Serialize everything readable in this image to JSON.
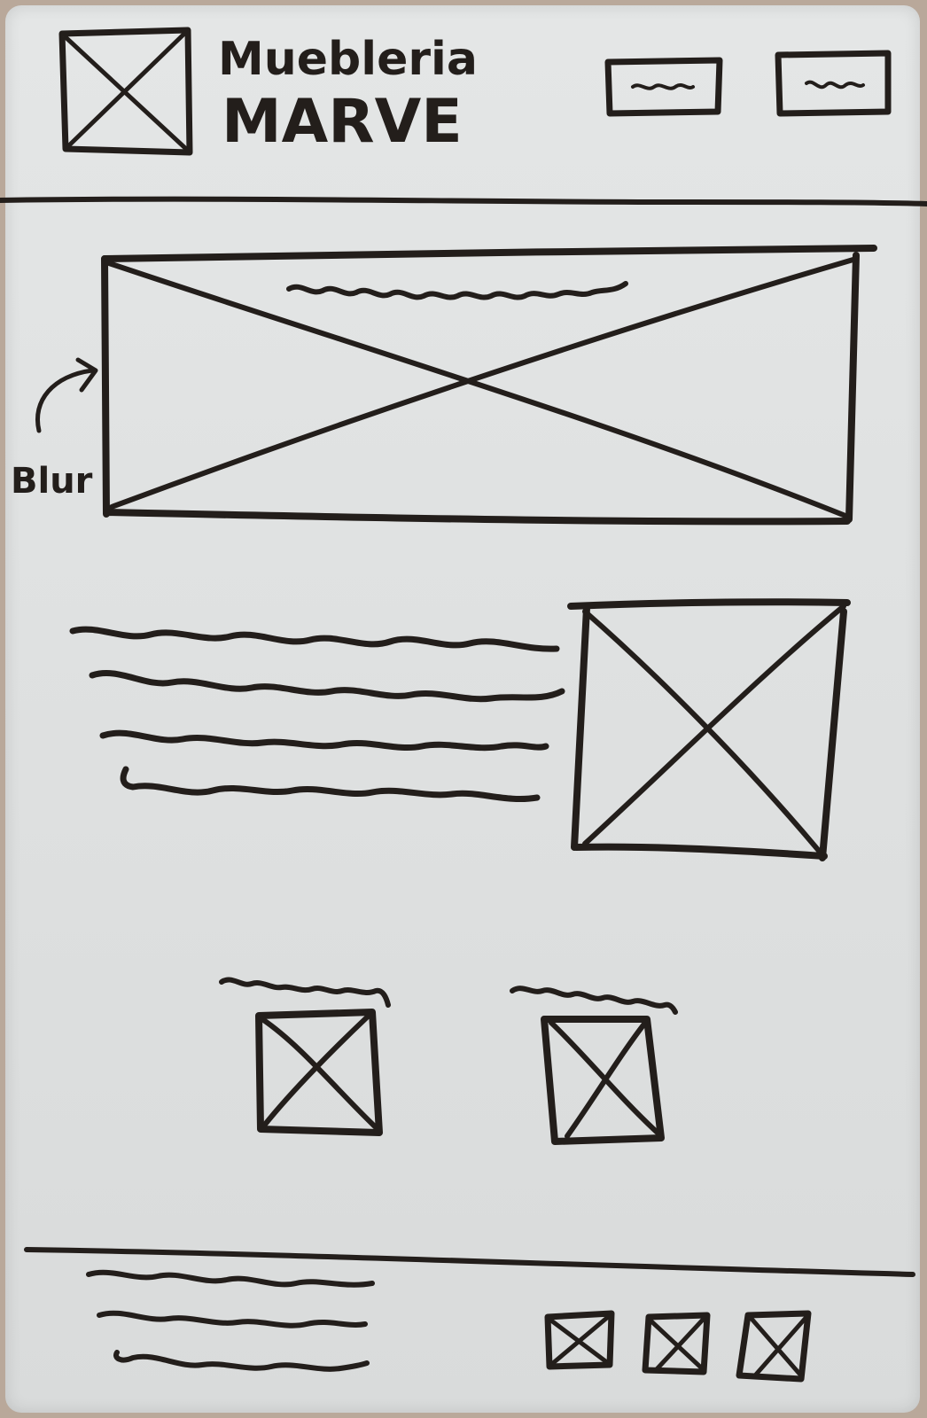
{
  "brand": {
    "line1": "Muebleria",
    "line2": "MARVE"
  },
  "hero": {
    "annotation": "Blur"
  },
  "colors": {
    "ink": "#231e1b",
    "board": "#e2e4e4",
    "frame": "#b9a89a"
  }
}
